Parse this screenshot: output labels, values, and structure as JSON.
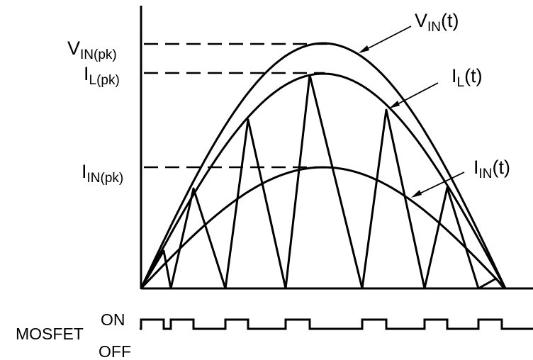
{
  "labels": {
    "vin_pk": {
      "main": "V",
      "sub": "IN(pk)"
    },
    "il_pk": {
      "main": "I",
      "sub": "L(pk)"
    },
    "iin_pk": {
      "main": "I",
      "sub": "IN(pk)"
    },
    "vin_t": {
      "main": "V",
      "sub": "IN",
      "tail": "(t)"
    },
    "il_t": {
      "main": "I",
      "sub": "L",
      "tail": "(t)"
    },
    "iin_t": {
      "main": "I",
      "sub": "IN",
      "tail": "(t)"
    },
    "mosfet": "MOSFET",
    "on": "ON",
    "off": "OFF"
  },
  "colors": {
    "ink": "#000000",
    "background": "#ffffff"
  }
}
